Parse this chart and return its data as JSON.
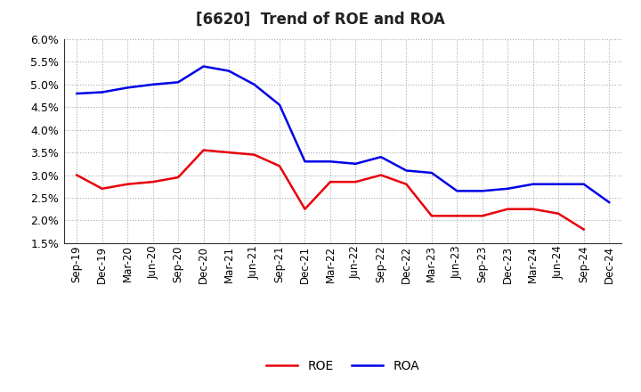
{
  "title": "[6620]  Trend of ROE and ROA",
  "x_labels": [
    "Sep-19",
    "Dec-19",
    "Mar-20",
    "Jun-20",
    "Sep-20",
    "Dec-20",
    "Mar-21",
    "Jun-21",
    "Sep-21",
    "Dec-21",
    "Mar-22",
    "Jun-22",
    "Sep-22",
    "Dec-22",
    "Mar-23",
    "Jun-23",
    "Sep-23",
    "Dec-23",
    "Mar-24",
    "Jun-24",
    "Sep-24",
    "Dec-24"
  ],
  "roe": [
    3.0,
    2.7,
    2.8,
    2.85,
    2.95,
    3.55,
    3.5,
    3.45,
    3.2,
    2.25,
    2.85,
    2.85,
    3.0,
    2.8,
    2.1,
    2.1,
    2.1,
    2.25,
    2.25,
    2.15,
    1.8,
    null
  ],
  "roa": [
    4.8,
    4.83,
    4.93,
    5.0,
    5.05,
    5.4,
    5.3,
    5.0,
    4.55,
    3.3,
    3.3,
    3.25,
    3.4,
    3.1,
    3.05,
    2.65,
    2.65,
    2.7,
    2.8,
    2.8,
    2.8,
    2.4
  ],
  "roe_color": "#e8000b",
  "roa_color": "#0000e8",
  "bg_color": "#ffffff",
  "plot_bg_color": "#ffffff",
  "grid_color": "#aaaaaa",
  "ylim": [
    1.5,
    6.0
  ],
  "yticks": [
    1.5,
    2.0,
    2.5,
    3.0,
    3.5,
    4.0,
    4.5,
    5.0,
    5.5,
    6.0
  ],
  "legend_labels": [
    "ROE",
    "ROA"
  ],
  "linewidth": 1.8
}
